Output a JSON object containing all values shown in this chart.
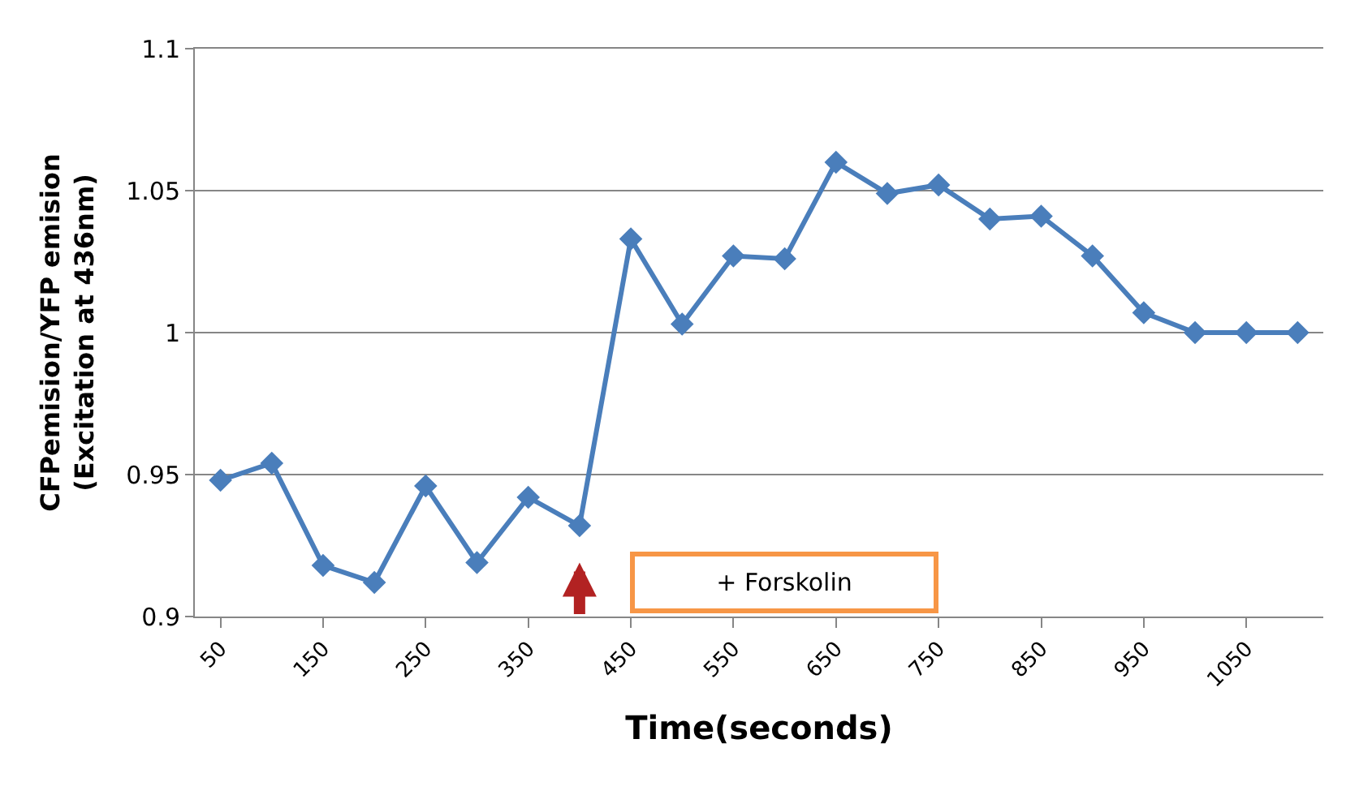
{
  "chart_data": {
    "type": "line",
    "xlabel": "Time(seconds)",
    "ylabel": "CFPemision/YFP emision\n(Excitation at 436nm)",
    "categories": [
      "50",
      null,
      "150",
      null,
      "250",
      null,
      "350",
      null,
      "450",
      null,
      "550",
      null,
      "650",
      null,
      "750",
      null,
      "850",
      null,
      "950",
      null,
      "1050",
      null
    ],
    "series": [
      {
        "color": "#4a7ebb",
        "values": [
          0.948,
          0.954,
          0.918,
          0.912,
          0.946,
          0.919,
          0.942,
          0.932,
          1.033,
          1.003,
          1.027,
          1.026,
          1.06,
          1.049,
          1.052,
          1.04,
          1.041,
          1.027,
          1.007,
          1.0,
          1.0,
          1.0
        ]
      }
    ],
    "ylim": [
      0.9,
      1.1
    ],
    "yticks": [
      0.9,
      0.95,
      1,
      1.05,
      1.1
    ],
    "grid": "y",
    "marker": "diamond",
    "line_style": "solid",
    "annotations": [
      "+ Forskolin"
    ]
  }
}
